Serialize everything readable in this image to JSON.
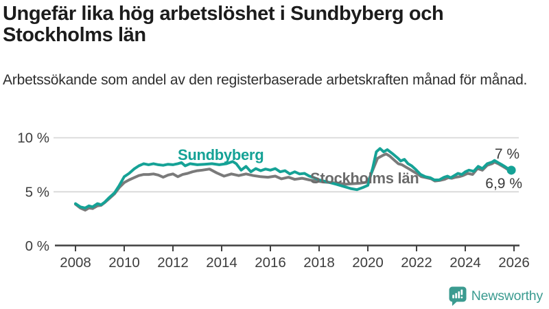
{
  "title": "Ungefär lika hög arbetslöshet i Sundbyberg och Stockholms län",
  "subtitle": "Arbetssökande som andel av den registerbaserade arbetskraften månad för månad.",
  "footer": {
    "brand": "Newsworthy"
  },
  "colors": {
    "sundbyberg_line": "#15A296",
    "stockholm_line": "#7a7a7a",
    "stockholm_label": "#6b6b6b",
    "grid": "#d8d8d8",
    "axis": "#3f3f3f",
    "tick_text": "#3d3d3d",
    "end_label_text": "#3a3a3a",
    "brand_teal": "#3B9B90",
    "title_text": "#1c1c1c"
  },
  "chart_data": {
    "type": "line",
    "title": "Ungefär lika hög arbetslöshet i Sundbyberg och Stockholms län",
    "subtitle": "Arbetssökande som andel av den registerbaserade arbetskraften månad för månad.",
    "unit": "%",
    "grid": "horizontal",
    "legend_position": "inline-labels",
    "x_axis": {
      "ticks": [
        2008,
        2010,
        2012,
        2014,
        2016,
        2018,
        2020,
        2022,
        2024,
        2026
      ],
      "range": [
        2007.1,
        2026.4
      ]
    },
    "y_axis": {
      "ticks": [
        {
          "value": 0,
          "label": "0 %"
        },
        {
          "value": 5,
          "label": "5 %"
        },
        {
          "value": 10,
          "label": "10 %"
        }
      ],
      "range": [
        0,
        10.6
      ]
    },
    "series": [
      {
        "name": "Stockholms län",
        "color": "#7a7a7a",
        "label_color": "#6b6b6b",
        "end_label": "6,9 %",
        "end_value": 6.9,
        "points": [
          [
            2008.0,
            3.85
          ],
          [
            2008.2,
            3.5
          ],
          [
            2008.4,
            3.3
          ],
          [
            2008.55,
            3.5
          ],
          [
            2008.7,
            3.45
          ],
          [
            2008.9,
            3.7
          ],
          [
            2009.05,
            3.75
          ],
          [
            2009.2,
            4.0
          ],
          [
            2009.4,
            4.4
          ],
          [
            2009.6,
            4.8
          ],
          [
            2009.8,
            5.4
          ],
          [
            2010.0,
            5.85
          ],
          [
            2010.2,
            6.1
          ],
          [
            2010.4,
            6.3
          ],
          [
            2010.6,
            6.5
          ],
          [
            2010.8,
            6.6
          ],
          [
            2011.0,
            6.6
          ],
          [
            2011.2,
            6.65
          ],
          [
            2011.4,
            6.55
          ],
          [
            2011.6,
            6.35
          ],
          [
            2011.8,
            6.55
          ],
          [
            2012.0,
            6.65
          ],
          [
            2012.2,
            6.4
          ],
          [
            2012.4,
            6.6
          ],
          [
            2012.6,
            6.7
          ],
          [
            2012.8,
            6.85
          ],
          [
            2013.0,
            6.95
          ],
          [
            2013.2,
            7.0
          ],
          [
            2013.5,
            7.1
          ],
          [
            2013.8,
            6.75
          ],
          [
            2014.1,
            6.45
          ],
          [
            2014.4,
            6.65
          ],
          [
            2014.7,
            6.5
          ],
          [
            2015.0,
            6.65
          ],
          [
            2015.3,
            6.5
          ],
          [
            2015.6,
            6.4
          ],
          [
            2015.9,
            6.35
          ],
          [
            2016.2,
            6.45
          ],
          [
            2016.45,
            6.2
          ],
          [
            2016.75,
            6.35
          ],
          [
            2017.0,
            6.15
          ],
          [
            2017.3,
            6.25
          ],
          [
            2017.6,
            6.1
          ],
          [
            2017.9,
            6.0
          ],
          [
            2018.2,
            5.9
          ],
          [
            2018.5,
            5.85
          ],
          [
            2018.8,
            5.8
          ],
          [
            2019.1,
            5.7
          ],
          [
            2019.4,
            5.75
          ],
          [
            2019.7,
            5.8
          ],
          [
            2020.0,
            5.9
          ],
          [
            2020.2,
            7.0
          ],
          [
            2020.4,
            8.1
          ],
          [
            2020.6,
            8.35
          ],
          [
            2020.75,
            8.5
          ],
          [
            2020.9,
            8.3
          ],
          [
            2021.1,
            7.9
          ],
          [
            2021.25,
            7.6
          ],
          [
            2021.4,
            7.5
          ],
          [
            2021.55,
            7.3
          ],
          [
            2021.7,
            7.1
          ],
          [
            2021.85,
            6.9
          ],
          [
            2022.0,
            6.7
          ],
          [
            2022.2,
            6.4
          ],
          [
            2022.4,
            6.3
          ],
          [
            2022.6,
            6.2
          ],
          [
            2022.75,
            6.0
          ],
          [
            2022.95,
            6.05
          ],
          [
            2023.15,
            6.15
          ],
          [
            2023.3,
            6.3
          ],
          [
            2023.45,
            6.25
          ],
          [
            2023.6,
            6.35
          ],
          [
            2023.75,
            6.4
          ],
          [
            2023.9,
            6.5
          ],
          [
            2024.1,
            6.7
          ],
          [
            2024.3,
            6.6
          ],
          [
            2024.5,
            7.15
          ],
          [
            2024.7,
            7.0
          ],
          [
            2024.9,
            7.45
          ],
          [
            2025.1,
            7.6
          ],
          [
            2025.2,
            7.75
          ],
          [
            2025.35,
            7.6
          ],
          [
            2025.5,
            7.4
          ],
          [
            2025.65,
            7.2
          ],
          [
            2025.75,
            7.05
          ],
          [
            2025.89,
            6.9
          ]
        ]
      },
      {
        "name": "Sundbyberg",
        "color": "#15A296",
        "label_color": "#15A296",
        "end_label": "7 %",
        "end_value": 7.0,
        "points": [
          [
            2008.0,
            3.9
          ],
          [
            2008.2,
            3.6
          ],
          [
            2008.4,
            3.5
          ],
          [
            2008.55,
            3.7
          ],
          [
            2008.7,
            3.6
          ],
          [
            2008.9,
            3.9
          ],
          [
            2009.05,
            3.8
          ],
          [
            2009.2,
            4.05
          ],
          [
            2009.4,
            4.5
          ],
          [
            2009.6,
            4.9
          ],
          [
            2009.8,
            5.6
          ],
          [
            2010.0,
            6.4
          ],
          [
            2010.2,
            6.7
          ],
          [
            2010.4,
            7.1
          ],
          [
            2010.6,
            7.4
          ],
          [
            2010.8,
            7.6
          ],
          [
            2011.0,
            7.5
          ],
          [
            2011.2,
            7.6
          ],
          [
            2011.4,
            7.5
          ],
          [
            2011.6,
            7.45
          ],
          [
            2011.8,
            7.55
          ],
          [
            2012.0,
            7.5
          ],
          [
            2012.2,
            7.6
          ],
          [
            2012.35,
            7.7
          ],
          [
            2012.5,
            7.4
          ],
          [
            2012.7,
            7.6
          ],
          [
            2013.0,
            7.5
          ],
          [
            2013.3,
            7.55
          ],
          [
            2013.6,
            7.6
          ],
          [
            2013.9,
            7.5
          ],
          [
            2014.2,
            7.6
          ],
          [
            2014.45,
            7.8
          ],
          [
            2014.6,
            7.6
          ],
          [
            2014.8,
            7.0
          ],
          [
            2015.0,
            7.35
          ],
          [
            2015.2,
            6.85
          ],
          [
            2015.4,
            7.15
          ],
          [
            2015.6,
            6.95
          ],
          [
            2015.8,
            7.1
          ],
          [
            2016.0,
            7.0
          ],
          [
            2016.2,
            7.15
          ],
          [
            2016.4,
            6.85
          ],
          [
            2016.6,
            6.95
          ],
          [
            2016.8,
            6.65
          ],
          [
            2017.0,
            6.85
          ],
          [
            2017.2,
            6.65
          ],
          [
            2017.4,
            6.7
          ],
          [
            2017.6,
            6.45
          ],
          [
            2017.8,
            6.3
          ],
          [
            2018.0,
            6.1
          ],
          [
            2018.35,
            5.9
          ],
          [
            2018.7,
            5.7
          ],
          [
            2019.0,
            5.5
          ],
          [
            2019.3,
            5.3
          ],
          [
            2019.55,
            5.2
          ],
          [
            2019.8,
            5.4
          ],
          [
            2020.0,
            5.6
          ],
          [
            2020.2,
            7.2
          ],
          [
            2020.35,
            8.7
          ],
          [
            2020.5,
            9.0
          ],
          [
            2020.65,
            8.7
          ],
          [
            2020.8,
            8.9
          ],
          [
            2021.0,
            8.55
          ],
          [
            2021.24,
            8.1
          ],
          [
            2021.35,
            7.85
          ],
          [
            2021.5,
            8.0
          ],
          [
            2021.65,
            7.6
          ],
          [
            2021.8,
            7.4
          ],
          [
            2021.95,
            7.1
          ],
          [
            2022.17,
            6.6
          ],
          [
            2022.36,
            6.4
          ],
          [
            2022.56,
            6.3
          ],
          [
            2022.73,
            6.1
          ],
          [
            2022.93,
            6.1
          ],
          [
            2023.13,
            6.35
          ],
          [
            2023.27,
            6.45
          ],
          [
            2023.4,
            6.3
          ],
          [
            2023.55,
            6.5
          ],
          [
            2023.7,
            6.7
          ],
          [
            2023.86,
            6.6
          ],
          [
            2024.0,
            6.85
          ],
          [
            2024.15,
            7.0
          ],
          [
            2024.35,
            6.9
          ],
          [
            2024.53,
            7.35
          ],
          [
            2024.7,
            7.15
          ],
          [
            2024.9,
            7.6
          ],
          [
            2025.1,
            7.75
          ],
          [
            2025.2,
            7.9
          ],
          [
            2025.35,
            7.7
          ],
          [
            2025.5,
            7.5
          ],
          [
            2025.65,
            7.3
          ],
          [
            2025.75,
            7.15
          ],
          [
            2025.89,
            7.0
          ]
        ]
      }
    ]
  }
}
